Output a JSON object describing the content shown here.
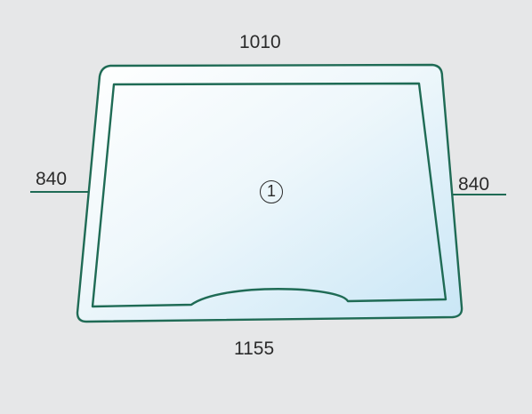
{
  "diagram": {
    "dimensions": {
      "top_width": "1010",
      "bottom_width": "1155",
      "left_height": "840",
      "right_height": "840"
    },
    "part_number": "1"
  },
  "colors": {
    "background": "#e6e7e8",
    "frame_stroke": "#1f6b55",
    "glass_light": "#ffffff",
    "glass_tint": "#cfe8f6",
    "text": "#2b2b2b"
  }
}
